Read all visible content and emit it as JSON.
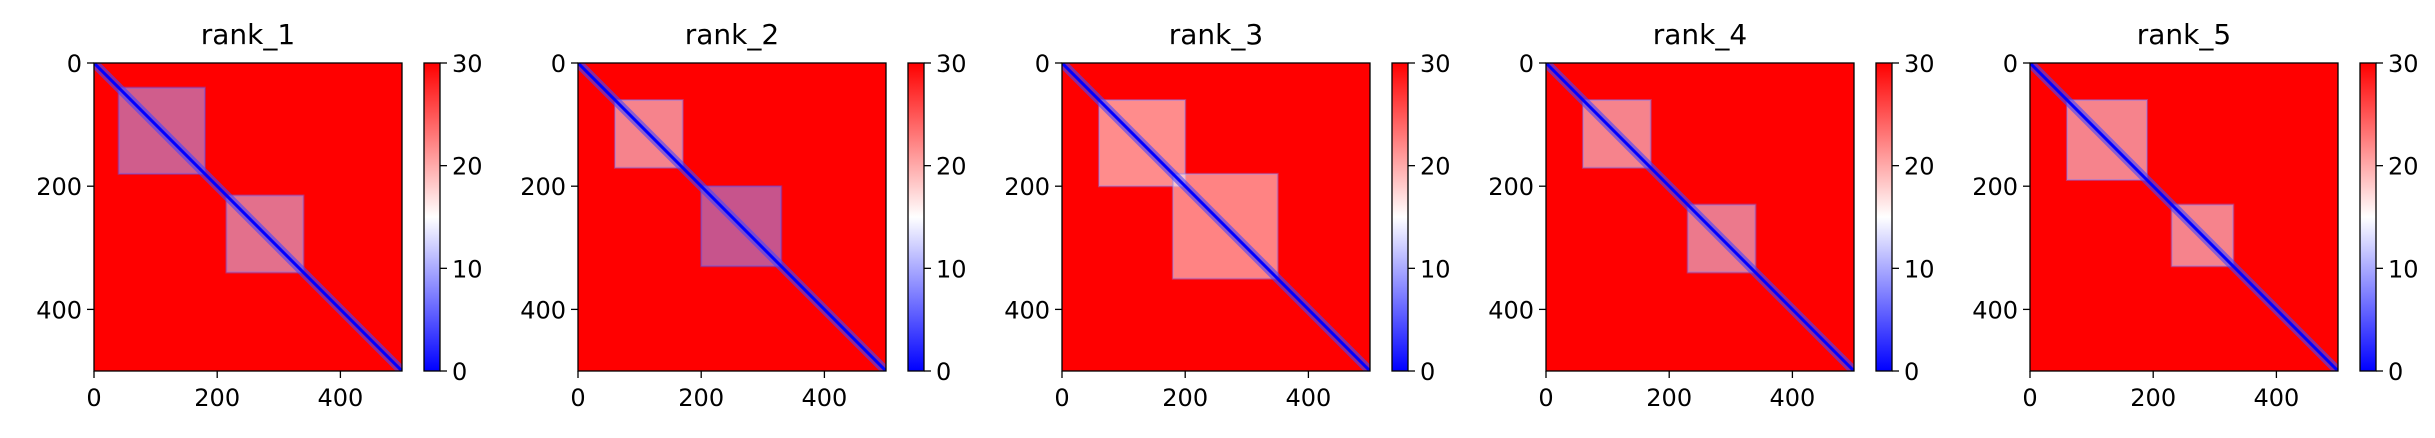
{
  "chart_data": [
    {
      "type": "heatmap",
      "title": "rank_1",
      "x_ticks": [
        0,
        200,
        400
      ],
      "y_ticks": [
        0,
        200,
        400
      ],
      "xlim": [
        0,
        500
      ],
      "ylim": [
        500,
        0
      ],
      "colorbar": {
        "ticks": [
          0,
          10,
          20,
          30
        ],
        "range": [
          0,
          30
        ],
        "colormap": "bwr"
      },
      "diagonal": "low values (~0) along the main diagonal",
      "blue_domains": [
        {
          "from": 40,
          "to": 180,
          "value": 10
        },
        {
          "from": 215,
          "to": 340,
          "value": 12
        }
      ]
    },
    {
      "type": "heatmap",
      "title": "rank_2",
      "x_ticks": [
        0,
        200,
        400
      ],
      "y_ticks": [
        0,
        200,
        400
      ],
      "xlim": [
        0,
        500
      ],
      "ylim": [
        500,
        0
      ],
      "colorbar": {
        "ticks": [
          0,
          10,
          20,
          30
        ],
        "range": [
          0,
          30
        ],
        "colormap": "bwr"
      },
      "diagonal": "low values (~0) along the main diagonal",
      "blue_domains": [
        {
          "from": 60,
          "to": 170,
          "value": 14
        },
        {
          "from": 200,
          "to": 330,
          "value": 9
        }
      ]
    },
    {
      "type": "heatmap",
      "title": "rank_3",
      "x_ticks": [
        0,
        200,
        400
      ],
      "y_ticks": [
        0,
        200,
        400
      ],
      "xlim": [
        0,
        500
      ],
      "ylim": [
        500,
        0
      ],
      "colorbar": {
        "ticks": [
          0,
          10,
          20,
          30
        ],
        "range": [
          0,
          30
        ],
        "colormap": "bwr"
      },
      "diagonal": "low values (~0) along the main diagonal",
      "blue_domains": [
        {
          "from": 60,
          "to": 200,
          "value": 15
        },
        {
          "from": 180,
          "to": 350,
          "value": 16
        }
      ]
    },
    {
      "type": "heatmap",
      "title": "rank_4",
      "x_ticks": [
        0,
        200,
        400
      ],
      "y_ticks": [
        0,
        200,
        400
      ],
      "xlim": [
        0,
        500
      ],
      "ylim": [
        500,
        0
      ],
      "colorbar": {
        "ticks": [
          0,
          10,
          20,
          30
        ],
        "range": [
          0,
          30
        ],
        "colormap": "bwr"
      },
      "diagonal": "low values (~0) along the main diagonal",
      "blue_domains": [
        {
          "from": 60,
          "to": 170,
          "value": 14
        },
        {
          "from": 230,
          "to": 340,
          "value": 13
        }
      ]
    },
    {
      "type": "heatmap",
      "title": "rank_5",
      "x_ticks": [
        0,
        200,
        400
      ],
      "y_ticks": [
        0,
        200,
        400
      ],
      "xlim": [
        0,
        500
      ],
      "ylim": [
        500,
        0
      ],
      "colorbar": {
        "ticks": [
          0,
          10,
          20,
          30
        ],
        "range": [
          0,
          30
        ],
        "colormap": "bwr"
      },
      "diagonal": "low values (~0) along the main diagonal",
      "blue_domains": [
        {
          "from": 60,
          "to": 190,
          "value": 14
        },
        {
          "from": 230,
          "to": 330,
          "value": 14
        }
      ]
    }
  ]
}
